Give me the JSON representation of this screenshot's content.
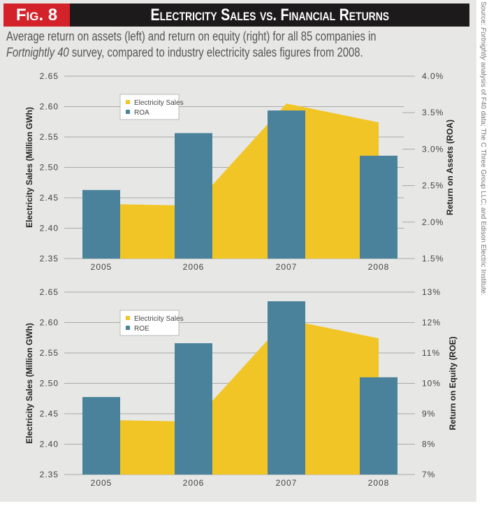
{
  "header": {
    "fig_label": "Fig. 8",
    "title": "Electricity Sales vs. Financial Returns"
  },
  "subtitle": {
    "part1": "Average return on assets (left) and return on equity (right) for all 85 companies in",
    "italic": "Fortnightly 40",
    "part2": " survey, compared to industry electricity sales figures from 2008."
  },
  "source": {
    "prefix": "Source: ",
    "italic": "Fortnightly",
    "rest": " analysis of F40 data; The C Three Group LLC; and Edison Electric Institute."
  },
  "colors": {
    "sales": "#f2c526",
    "bars": "#4a829c",
    "grid": "#a9a9a9"
  },
  "chart_data": [
    {
      "type": "bar+area",
      "categories": [
        "2005",
        "2006",
        "2007",
        "2008"
      ],
      "ylabel": "Electricity Sales (Million GWh)",
      "ylim": [
        2.35,
        2.65
      ],
      "yticks": [
        "2.35",
        "2.40",
        "2.45",
        "2.50",
        "2.55",
        "2.60",
        "2.65"
      ],
      "y2label": "Return on Assets (ROA)",
      "y2lim": [
        1.5,
        4.0
      ],
      "y2ticks": [
        "1.5%",
        "2.0%",
        "2.5%",
        "3.0%",
        "3.5%",
        "4.0%"
      ],
      "legend": [
        "Electricity Sales",
        "ROA"
      ],
      "legend_position": "top-left",
      "series": [
        {
          "name": "Electricity Sales",
          "axis": "left",
          "type": "area",
          "values": [
            2.44,
            2.437,
            2.605,
            2.574
          ]
        },
        {
          "name": "ROA",
          "axis": "right",
          "type": "bar",
          "unit": "%",
          "values": [
            2.44,
            3.22,
            3.53,
            2.91
          ]
        }
      ]
    },
    {
      "type": "bar+area",
      "categories": [
        "2005",
        "2006",
        "2007",
        "2008"
      ],
      "ylabel": "Electricity Sales (Million GWh)",
      "ylim": [
        2.35,
        2.65
      ],
      "yticks": [
        "2.35",
        "2.40",
        "2.45",
        "2.50",
        "2.55",
        "2.60",
        "2.65"
      ],
      "y2label": "Return on Equity (ROE)",
      "y2lim": [
        7,
        13
      ],
      "y2ticks": [
        "7%",
        "8%",
        "9%",
        "10%",
        "11%",
        "12%",
        "13%"
      ],
      "legend": [
        "Electricity Sales",
        "ROE"
      ],
      "legend_position": "top-left",
      "series": [
        {
          "name": "Electricity Sales",
          "axis": "left",
          "type": "area",
          "values": [
            2.44,
            2.437,
            2.605,
            2.574
          ]
        },
        {
          "name": "ROE",
          "axis": "right",
          "type": "bar",
          "unit": "%",
          "values": [
            9.55,
            11.32,
            12.7,
            10.2
          ]
        }
      ]
    }
  ]
}
